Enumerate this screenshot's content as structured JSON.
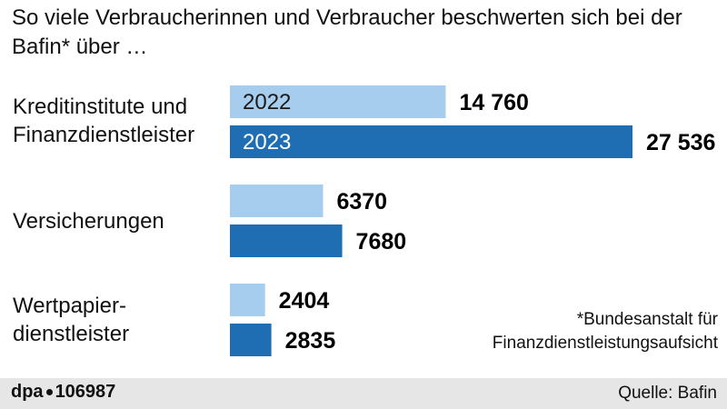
{
  "chart_data": {
    "type": "bar",
    "orientation": "horizontal",
    "title": "So viele Verbraucherinnen und Verbraucher beschwerten sich bei der Bafin* über …",
    "categories": [
      "Kreditinstitute und\nFinanzdienstleister",
      "Versicherungen",
      "Wertpapier-\ndienstleister"
    ],
    "series": [
      {
        "name": "2022",
        "values": [
          14760,
          6370,
          2404
        ],
        "value_labels": [
          "14 760",
          "6370",
          "2404"
        ],
        "color": "#a7cdee"
      },
      {
        "name": "2023",
        "values": [
          27536,
          7680,
          2835
        ],
        "value_labels": [
          "27 536",
          "7680",
          "2835"
        ],
        "color": "#1f6db3"
      }
    ],
    "xlim": [
      0,
      27536
    ],
    "grid": false,
    "legend": "inside first bars"
  },
  "footnote": "*Bundesanstalt für\nFinanzdienstleistungsaufsicht",
  "footer": {
    "agency": "dpa",
    "id": "106987",
    "source": "Quelle: Bafin"
  },
  "colors": {
    "series_2022": "#a7cdee",
    "series_2023": "#1f6db3",
    "legend_text_2022": "#1a1a1a",
    "legend_text_2023": "#ffffff",
    "footer_bg": "#e6e6e6"
  }
}
